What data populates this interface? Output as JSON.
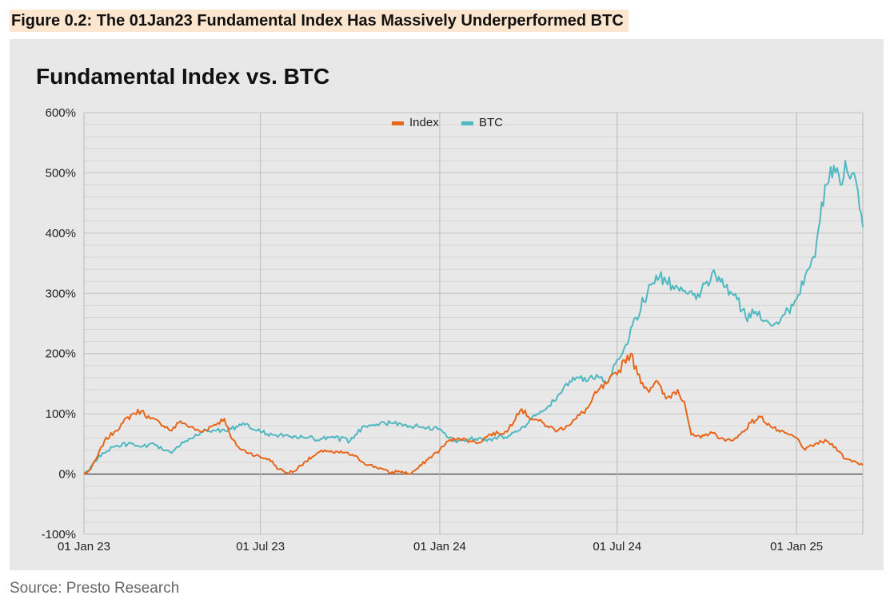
{
  "figure_caption": "Figure 0.2: The 01Jan23 Fundamental Index Has Massively Underperformed BTC",
  "source_note": "Source: Presto Research",
  "colors": {
    "index": "#e8661a",
    "btc": "#4fb8c1",
    "background": "#e8e8e8",
    "grid": "#c8c8c8",
    "zero_line": "#333333"
  },
  "chart_data": {
    "type": "line",
    "title": "Fundamental Index vs. BTC",
    "xlabel": "",
    "ylabel": "",
    "x_range": [
      "2023-01-01",
      "2025-03-10"
    ],
    "ylim": [
      -100,
      600
    ],
    "y_ticks": [
      -100,
      0,
      100,
      200,
      300,
      400,
      500,
      600
    ],
    "y_tick_labels": [
      "-100%",
      "0%",
      "100%",
      "200%",
      "300%",
      "400%",
      "500%",
      "600%"
    ],
    "x_ticks": [
      "2023-01-01",
      "2023-07-01",
      "2024-01-01",
      "2024-07-01",
      "2025-01-01"
    ],
    "x_tick_labels": [
      "01 Jan 23",
      "01 Jul 23",
      "01 Jan 24",
      "01 Jul 24",
      "01 Jan 25"
    ],
    "grid": true,
    "legend_position": "top-center",
    "series": [
      {
        "name": "Index",
        "color": "#e8661a",
        "points": [
          [
            "2023-01-01",
            0
          ],
          [
            "2023-01-08",
            8
          ],
          [
            "2023-01-15",
            30
          ],
          [
            "2023-01-22",
            55
          ],
          [
            "2023-02-01",
            70
          ],
          [
            "2023-02-10",
            85
          ],
          [
            "2023-02-20",
            100
          ],
          [
            "2023-03-01",
            105
          ],
          [
            "2023-03-10",
            92
          ],
          [
            "2023-03-20",
            85
          ],
          [
            "2023-04-01",
            72
          ],
          [
            "2023-04-10",
            88
          ],
          [
            "2023-04-20",
            78
          ],
          [
            "2023-05-01",
            70
          ],
          [
            "2023-05-15",
            82
          ],
          [
            "2023-05-25",
            92
          ],
          [
            "2023-06-01",
            60
          ],
          [
            "2023-06-10",
            42
          ],
          [
            "2023-06-20",
            35
          ],
          [
            "2023-07-01",
            28
          ],
          [
            "2023-07-10",
            25
          ],
          [
            "2023-07-20",
            8
          ],
          [
            "2023-07-28",
            2
          ],
          [
            "2023-08-05",
            5
          ],
          [
            "2023-08-15",
            20
          ],
          [
            "2023-08-25",
            30
          ],
          [
            "2023-09-05",
            40
          ],
          [
            "2023-09-15",
            35
          ],
          [
            "2023-09-25",
            36
          ],
          [
            "2023-10-05",
            30
          ],
          [
            "2023-10-20",
            15
          ],
          [
            "2023-11-01",
            10
          ],
          [
            "2023-11-10",
            2
          ],
          [
            "2023-11-20",
            5
          ],
          [
            "2023-12-01",
            0
          ],
          [
            "2023-12-10",
            10
          ],
          [
            "2023-12-20",
            25
          ],
          [
            "2024-01-01",
            40
          ],
          [
            "2024-01-10",
            55
          ],
          [
            "2024-01-20",
            60
          ],
          [
            "2024-02-01",
            55
          ],
          [
            "2024-02-10",
            52
          ],
          [
            "2024-02-20",
            65
          ],
          [
            "2024-03-01",
            68
          ],
          [
            "2024-03-10",
            70
          ],
          [
            "2024-03-20",
            100
          ],
          [
            "2024-03-25",
            108
          ],
          [
            "2024-04-01",
            95
          ],
          [
            "2024-04-10",
            90
          ],
          [
            "2024-04-20",
            80
          ],
          [
            "2024-05-01",
            72
          ],
          [
            "2024-05-10",
            80
          ],
          [
            "2024-05-20",
            92
          ],
          [
            "2024-06-01",
            110
          ],
          [
            "2024-06-10",
            135
          ],
          [
            "2024-06-20",
            150
          ],
          [
            "2024-07-01",
            165
          ],
          [
            "2024-07-08",
            190
          ],
          [
            "2024-07-15",
            200
          ],
          [
            "2024-07-22",
            165
          ],
          [
            "2024-08-01",
            140
          ],
          [
            "2024-08-10",
            155
          ],
          [
            "2024-08-20",
            125
          ],
          [
            "2024-09-01",
            140
          ],
          [
            "2024-09-08",
            120
          ],
          [
            "2024-09-15",
            65
          ],
          [
            "2024-09-25",
            60
          ],
          [
            "2024-10-05",
            70
          ],
          [
            "2024-10-20",
            55
          ],
          [
            "2024-11-01",
            60
          ],
          [
            "2024-11-15",
            85
          ],
          [
            "2024-11-25",
            95
          ],
          [
            "2024-12-05",
            80
          ],
          [
            "2024-12-15",
            70
          ],
          [
            "2024-12-25",
            65
          ],
          [
            "2025-01-01",
            60
          ],
          [
            "2025-01-10",
            40
          ],
          [
            "2025-01-20",
            50
          ],
          [
            "2025-02-01",
            55
          ],
          [
            "2025-02-10",
            45
          ],
          [
            "2025-02-20",
            25
          ],
          [
            "2025-03-01",
            22
          ],
          [
            "2025-03-10",
            15
          ]
        ]
      },
      {
        "name": "BTC",
        "color": "#4fb8c1",
        "points": [
          [
            "2023-01-01",
            0
          ],
          [
            "2023-01-10",
            15
          ],
          [
            "2023-01-20",
            35
          ],
          [
            "2023-02-01",
            45
          ],
          [
            "2023-02-15",
            50
          ],
          [
            "2023-03-01",
            45
          ],
          [
            "2023-03-15",
            48
          ],
          [
            "2023-04-01",
            35
          ],
          [
            "2023-04-15",
            55
          ],
          [
            "2023-05-01",
            70
          ],
          [
            "2023-05-15",
            72
          ],
          [
            "2023-06-01",
            75
          ],
          [
            "2023-06-15",
            82
          ],
          [
            "2023-07-01",
            70
          ],
          [
            "2023-07-15",
            65
          ],
          [
            "2023-08-01",
            62
          ],
          [
            "2023-08-15",
            60
          ],
          [
            "2023-09-01",
            58
          ],
          [
            "2023-09-15",
            60
          ],
          [
            "2023-10-01",
            55
          ],
          [
            "2023-10-15",
            80
          ],
          [
            "2023-11-01",
            85
          ],
          [
            "2023-11-15",
            84
          ],
          [
            "2023-12-01",
            80
          ],
          [
            "2023-12-15",
            78
          ],
          [
            "2024-01-01",
            75
          ],
          [
            "2024-01-10",
            60
          ],
          [
            "2024-01-20",
            55
          ],
          [
            "2024-02-01",
            58
          ],
          [
            "2024-02-10",
            60
          ],
          [
            "2024-02-20",
            58
          ],
          [
            "2024-03-01",
            62
          ],
          [
            "2024-03-10",
            60
          ],
          [
            "2024-03-20",
            70
          ],
          [
            "2024-04-01",
            85
          ],
          [
            "2024-04-10",
            100
          ],
          [
            "2024-04-20",
            110
          ],
          [
            "2024-05-01",
            130
          ],
          [
            "2024-05-10",
            150
          ],
          [
            "2024-05-20",
            160
          ],
          [
            "2024-06-01",
            155
          ],
          [
            "2024-06-10",
            165
          ],
          [
            "2024-06-20",
            150
          ],
          [
            "2024-07-01",
            190
          ],
          [
            "2024-07-10",
            215
          ],
          [
            "2024-07-20",
            260
          ],
          [
            "2024-08-01",
            300
          ],
          [
            "2024-08-10",
            330
          ],
          [
            "2024-08-20",
            320
          ],
          [
            "2024-09-01",
            310
          ],
          [
            "2024-09-10",
            300
          ],
          [
            "2024-09-20",
            290
          ],
          [
            "2024-10-01",
            320
          ],
          [
            "2024-10-10",
            330
          ],
          [
            "2024-10-20",
            310
          ],
          [
            "2024-11-01",
            290
          ],
          [
            "2024-11-10",
            260
          ],
          [
            "2024-11-20",
            270
          ],
          [
            "2024-12-01",
            255
          ],
          [
            "2024-12-10",
            250
          ],
          [
            "2024-12-20",
            265
          ],
          [
            "2025-01-01",
            290
          ],
          [
            "2025-01-10",
            330
          ],
          [
            "2025-01-20",
            360
          ],
          [
            "2025-01-25",
            420
          ],
          [
            "2025-02-01",
            480
          ],
          [
            "2025-02-05",
            510
          ],
          [
            "2025-02-10",
            500
          ],
          [
            "2025-02-15",
            480
          ],
          [
            "2025-02-20",
            520
          ],
          [
            "2025-02-25",
            490
          ],
          [
            "2025-03-01",
            500
          ],
          [
            "2025-03-05",
            470
          ],
          [
            "2025-03-10",
            410
          ]
        ]
      }
    ]
  }
}
